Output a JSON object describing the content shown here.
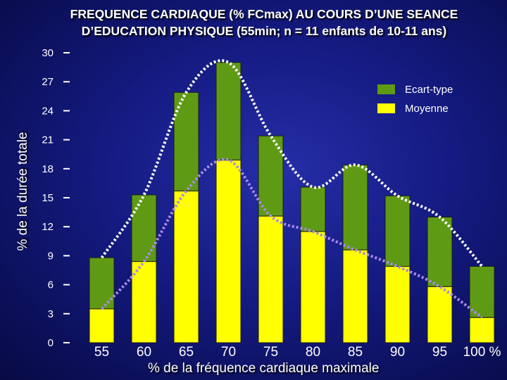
{
  "chart_data": {
    "type": "bar",
    "title": "FREQUENCE CARDIAQUE (% FCmax) AU COURS D’UNE SEANCE D’EDUCATION PHYSIQUE (55min; n = 11 enfants de 10-11 ans)",
    "xlabel": "% de la fréquence cardiaque maximale",
    "ylabel": "% de la durée totale",
    "ylim": [
      0,
      30
    ],
    "yticks": [
      "0",
      "3",
      "6",
      "9",
      "12",
      "15",
      "18",
      "21",
      "24",
      "27",
      "30"
    ],
    "xticks": [
      "55",
      "60",
      "65",
      "70",
      "75",
      "80",
      "85",
      "90",
      "95",
      "100 %"
    ],
    "categories": [
      "55",
      "60",
      "65",
      "70",
      "75",
      "80",
      "85",
      "90",
      "95",
      "100"
    ],
    "series": [
      {
        "name": "Moyenne",
        "values": [
          3.5,
          8.4,
          15.7,
          18.9,
          13.1,
          11.5,
          9.6,
          7.9,
          5.8,
          2.6
        ],
        "color": "#ffff00"
      },
      {
        "name": "Ecart-type",
        "values": [
          5.3,
          6.9,
          10.2,
          10.1,
          8.3,
          4.6,
          8.8,
          7.3,
          7.2,
          5.3
        ],
        "color": "#5f9a15"
      }
    ],
    "legend": [
      {
        "label": "Ecart-type",
        "color": "#5f9a15"
      },
      {
        "label": "Moyenne",
        "color": "#ffff00"
      }
    ],
    "legend_position": "top-right",
    "curves": [
      {
        "name": "total",
        "color": "#ffffff",
        "style": "dotted"
      },
      {
        "name": "moyenne",
        "color": "#a98ae8",
        "style": "dotted"
      }
    ]
  }
}
